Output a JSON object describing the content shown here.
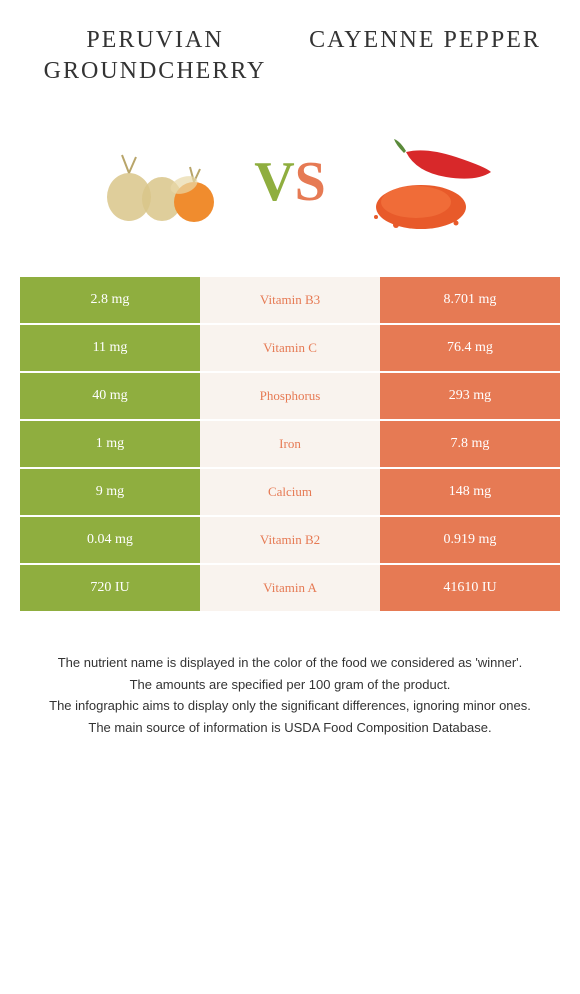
{
  "left_food": "Peruvian groundcherry",
  "right_food": "Cayenne pepper",
  "vs_v": "V",
  "vs_s": "S",
  "colors": {
    "left_bg": "#8fae3f",
    "right_bg": "#e67a54",
    "mid_bg": "#f9f3ee",
    "mid_text": "#e67a54"
  },
  "rows": [
    {
      "left": "2.8 mg",
      "mid": "Vitamin B3",
      "right": "8.701 mg"
    },
    {
      "left": "11 mg",
      "mid": "Vitamin C",
      "right": "76.4 mg"
    },
    {
      "left": "40 mg",
      "mid": "Phosphorus",
      "right": "293 mg"
    },
    {
      "left": "1 mg",
      "mid": "Iron",
      "right": "7.8 mg"
    },
    {
      "left": "9 mg",
      "mid": "Calcium",
      "right": "148 mg"
    },
    {
      "left": "0.04 mg",
      "mid": "Vitamin B2",
      "right": "0.919 mg"
    },
    {
      "left": "720 IU",
      "mid": "Vitamin A",
      "right": "41610 IU"
    }
  ],
  "footer": [
    "The nutrient name is displayed in the color of the food we considered as 'winner'.",
    "The amounts are specified per 100 gram of the product.",
    "The infographic aims to display only the significant differences, ignoring minor ones.",
    "The main source of information is USDA Food Composition Database."
  ]
}
